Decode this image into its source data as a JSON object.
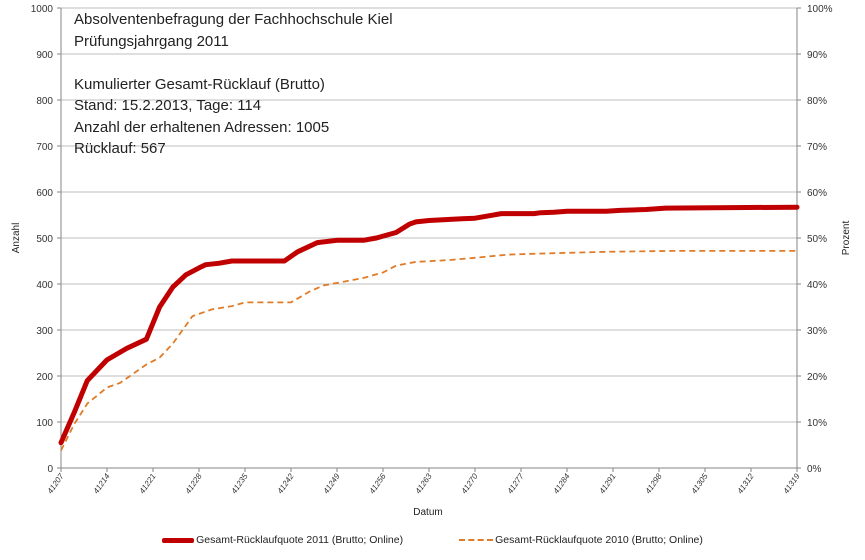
{
  "info_box": {
    "lines": [
      "Absolventenbefragung der Fachhochschule Kiel",
      "Prüfungsjahrgang  2011",
      "",
      "Kumulierter  Gesamt-Rücklauf (Brutto)",
      "Stand: 15.2.2013, Tage: 114",
      "Anzahl der erhaltenen Adressen: 1005",
      "Rücklauf: 567"
    ]
  },
  "chart_data": {
    "type": "line",
    "title": "",
    "xlabel": "Datum",
    "ylabel": "Anzahl",
    "y2label": "Prozent",
    "xlim": [
      41207,
      41319
    ],
    "ylim": [
      0,
      1000
    ],
    "y2lim": [
      0,
      100
    ],
    "grid": true,
    "legend": "bottom",
    "x_ticks": [
      "41207",
      "41214",
      "41221",
      "41228",
      "41235",
      "41242",
      "41249",
      "41256",
      "41263",
      "41270",
      "41277",
      "41284",
      "41291",
      "41298",
      "41305",
      "41312",
      "41319"
    ],
    "y_ticks": [
      "0",
      "100",
      "200",
      "300",
      "400",
      "500",
      "600",
      "700",
      "800",
      "900",
      "1000"
    ],
    "y2_ticks": [
      "0%",
      "10%",
      "20%",
      "30%",
      "40%",
      "50%",
      "60%",
      "70%",
      "80%",
      "90%",
      "100%"
    ],
    "series": [
      {
        "name": "Gesamt-Rücklaufquote 2011 (Brutto; Online)",
        "color": "#c00000",
        "style": "solid",
        "x": [
          41207,
          41209,
          41210,
          41211,
          41214,
          41217,
          41220,
          41221,
          41222,
          41224,
          41226,
          41228,
          41229,
          41231,
          41233,
          41241,
          41243,
          41246,
          41249,
          41253,
          41255,
          41258,
          41260,
          41261,
          41263,
          41268,
          41270,
          41272,
          41274,
          41279,
          41280,
          41282,
          41284,
          41290,
          41292,
          41296,
          41299,
          41319
        ],
        "values": [
          55,
          120,
          155,
          190,
          235,
          260,
          280,
          315,
          350,
          393,
          420,
          435,
          442,
          445,
          450,
          450,
          470,
          490,
          495,
          495,
          500,
          512,
          530,
          535,
          538,
          542,
          543,
          548,
          553,
          553,
          555,
          556,
          558,
          558,
          560,
          562,
          565,
          567
        ]
      },
      {
        "name": "Gesamt-Rücklaufquote 2010 (Brutto; Online)",
        "color": "#e07b28",
        "style": "dashed",
        "x": [
          41207,
          41209,
          41211,
          41214,
          41216,
          41218,
          41220,
          41222,
          41224,
          41226,
          41227,
          41228,
          41230,
          41233,
          41235,
          41242,
          41245,
          41247,
          41250,
          41253,
          41256,
          41258,
          41261,
          41266,
          41270,
          41275,
          41282,
          41290,
          41300,
          41319
        ],
        "values": [
          38,
          95,
          140,
          175,
          185,
          205,
          225,
          240,
          270,
          310,
          330,
          335,
          345,
          352,
          360,
          360,
          385,
          397,
          405,
          413,
          425,
          440,
          448,
          452,
          457,
          464,
          467,
          470,
          472,
          472
        ]
      }
    ]
  }
}
